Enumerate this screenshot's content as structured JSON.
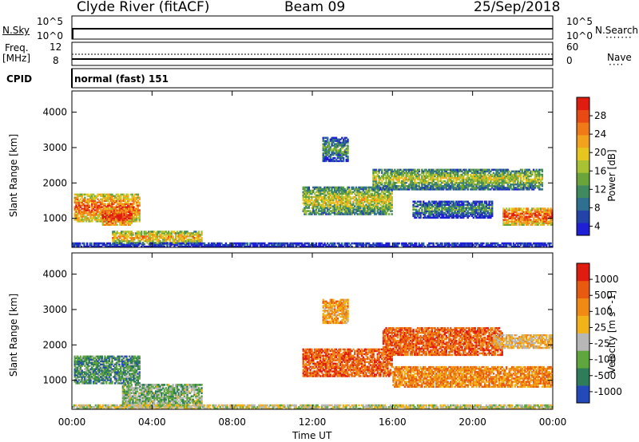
{
  "header": {
    "station": "Clyde River (fitACF)",
    "beam": "Beam 09",
    "date": "25/Sep/2018"
  },
  "top_panels": {
    "nsky_label": "N.Sky",
    "nsky_ticks": [
      "10^5",
      "10^0"
    ],
    "nsearch_label": "N.Search",
    "nsearch_ticks": [
      "10^5",
      "10^0"
    ],
    "freq_label": "Freq.",
    "freq_unit": "[MHz]",
    "freq_ticks": [
      "12",
      "8"
    ],
    "nave_label": "Nave",
    "nave_ticks": [
      "60",
      "0"
    ],
    "cpid_label": "CPID",
    "cpid_value": "normal (fast) 151"
  },
  "chart_data": [
    {
      "type": "heatmap",
      "name": "power",
      "ylabel": "Slant Range [km]",
      "xlabel": "",
      "ylim": [
        180,
        4600
      ],
      "yticks": [
        "4000",
        "3000",
        "2000",
        "1000"
      ],
      "colorbar_label": "Power [dB]",
      "colorbar_ticks": [
        "28",
        "24",
        "20",
        "16",
        "12",
        "8",
        "4"
      ],
      "colorbar_colors": [
        "#1f1fd6",
        "#2343a8",
        "#2f6f8f",
        "#3f8a5e",
        "#6aa43a",
        "#a8c233",
        "#e6c51f",
        "#f2a21c",
        "#f07a18",
        "#e84a14",
        "#e01b10"
      ],
      "blobs": [
        {
          "t0": 0.1,
          "t1": 3.4,
          "r0": 900,
          "r1": 1700,
          "level": 0.85
        },
        {
          "t0": 1.5,
          "t1": 3.0,
          "r0": 800,
          "r1": 1300,
          "level": 1.0
        },
        {
          "t0": 2.0,
          "t1": 6.5,
          "r0": 250,
          "r1": 650,
          "level": 0.7
        },
        {
          "t0": 11.5,
          "t1": 16.0,
          "r0": 1100,
          "r1": 1900,
          "level": 0.6
        },
        {
          "t0": 15.0,
          "t1": 23.5,
          "r0": 1800,
          "r1": 2400,
          "level": 0.55
        },
        {
          "t0": 21.5,
          "t1": 24.0,
          "r0": 800,
          "r1": 1300,
          "level": 0.9
        },
        {
          "t0": 17.0,
          "t1": 21.0,
          "r0": 1000,
          "r1": 1500,
          "level": 0.35
        },
        {
          "t0": 12.5,
          "t1": 13.8,
          "r0": 2600,
          "r1": 3300,
          "level": 0.4
        },
        {
          "t0": 0.0,
          "t1": 24.0,
          "r0": 180,
          "r1": 320,
          "level": 0.2
        }
      ]
    },
    {
      "type": "heatmap",
      "name": "velocity",
      "ylabel": "Slant Range [km]",
      "xlabel": "Time UT",
      "ylim": [
        180,
        4600
      ],
      "yticks": [
        "4000",
        "3000",
        "2000",
        "1000"
      ],
      "xticks": [
        "00:00",
        "04:00",
        "08:00",
        "12:00",
        "16:00",
        "20:00",
        "00:00"
      ],
      "xlim": [
        0,
        24
      ],
      "colorbar_label": "Velocity [m s^-1]",
      "colorbar_ticks": [
        "1000",
        "500",
        "100",
        "25",
        "-25",
        "-100",
        "-500",
        "-1000"
      ],
      "colorbar_colors": [
        "#2449b8",
        "#2f7c5a",
        "#5fa63f",
        "#b7b7b7",
        "#f2b21a",
        "#f08a14",
        "#e85a10",
        "#e01b10"
      ],
      "blobs": [
        {
          "t0": 0.1,
          "t1": 3.4,
          "r0": 900,
          "r1": 1700,
          "level": 0.25
        },
        {
          "t0": 2.5,
          "t1": 6.5,
          "r0": 250,
          "r1": 900,
          "level": 0.35
        },
        {
          "t0": 11.5,
          "t1": 16.0,
          "r0": 1100,
          "r1": 1900,
          "level": 0.8
        },
        {
          "t0": 15.5,
          "t1": 21.5,
          "r0": 1700,
          "r1": 2500,
          "level": 0.8
        },
        {
          "t0": 21.0,
          "t1": 24.0,
          "r0": 1900,
          "r1": 2300,
          "level": 0.55
        },
        {
          "t0": 16.0,
          "t1": 24.0,
          "r0": 800,
          "r1": 1400,
          "level": 0.7
        },
        {
          "t0": 12.5,
          "t1": 13.8,
          "r0": 2600,
          "r1": 3300,
          "level": 0.65
        },
        {
          "t0": 0.0,
          "t1": 24.0,
          "r0": 180,
          "r1": 320,
          "level": 0.45
        }
      ]
    }
  ]
}
